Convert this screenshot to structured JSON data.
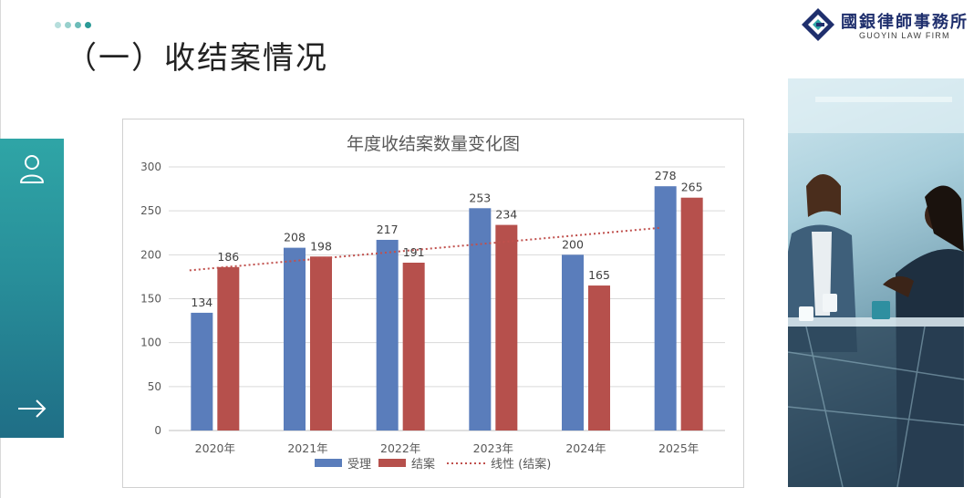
{
  "header": {
    "title": "（一）收结案情况",
    "dot_colors": [
      "#b6dedc",
      "#97d0cc",
      "#6cbcb8",
      "#2a9a96"
    ]
  },
  "logo": {
    "name": "國銀律師事務所",
    "english": "GUOYIN LAW FIRM"
  },
  "sidebar": {
    "icons": [
      "user-icon",
      "arrow-right-icon"
    ]
  },
  "photo": {
    "subject": "business-meeting-photo"
  },
  "colors": {
    "series_accepted": "#5a7dbb",
    "series_closed": "#b6504c",
    "trend": "#c0504d"
  },
  "chart_data": {
    "type": "bar",
    "title": "年度收结案数量变化图",
    "categories": [
      "2020年",
      "2021年",
      "2022年",
      "2023年",
      "2024年",
      "2025年"
    ],
    "series": [
      {
        "name": "受理",
        "values": [
          134,
          208,
          217,
          253,
          200,
          278
        ]
      },
      {
        "name": "结案",
        "values": [
          186,
          198,
          191,
          234,
          165,
          265
        ]
      }
    ],
    "trendline": {
      "name": "线性 (结案)",
      "series": "结案",
      "kind": "linear"
    },
    "yticks": [
      0,
      50,
      100,
      150,
      200,
      250,
      300
    ],
    "ylim": [
      0,
      300
    ],
    "xlabel": "",
    "ylabel": "",
    "grid": true,
    "legend": "bottom",
    "legend_labels": [
      "受理",
      "结案",
      "线性 (结案)"
    ]
  }
}
